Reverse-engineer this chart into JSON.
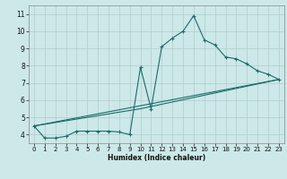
{
  "xlabel": "Humidex (Indice chaleur)",
  "bg_color": "#cce8e8",
  "grid_color": "#b0cccc",
  "line_color": "#1a6b6b",
  "xlim": [
    -0.5,
    23.5
  ],
  "ylim": [
    3.5,
    11.5
  ],
  "xticks": [
    0,
    1,
    2,
    3,
    4,
    5,
    6,
    7,
    8,
    9,
    10,
    11,
    12,
    13,
    14,
    15,
    16,
    17,
    18,
    19,
    20,
    21,
    22,
    23
  ],
  "yticks": [
    4,
    5,
    6,
    7,
    8,
    9,
    10,
    11
  ],
  "series1_x": [
    0,
    1,
    2,
    3,
    4,
    5,
    6,
    7,
    8,
    9,
    10,
    11,
    12,
    13,
    14,
    15,
    16,
    17,
    18,
    19,
    20,
    21,
    22,
    23
  ],
  "series1_y": [
    4.5,
    3.8,
    3.8,
    3.9,
    4.2,
    4.2,
    4.2,
    4.2,
    4.15,
    4.0,
    7.9,
    5.5,
    9.1,
    9.6,
    10.0,
    10.9,
    9.5,
    9.2,
    8.5,
    8.4,
    8.1,
    7.7,
    7.5,
    7.2
  ],
  "series2_x": [
    0,
    23
  ],
  "series2_y": [
    4.5,
    7.2
  ],
  "series3_x": [
    0,
    10,
    23
  ],
  "series3_y": [
    4.5,
    5.5,
    7.2
  ]
}
